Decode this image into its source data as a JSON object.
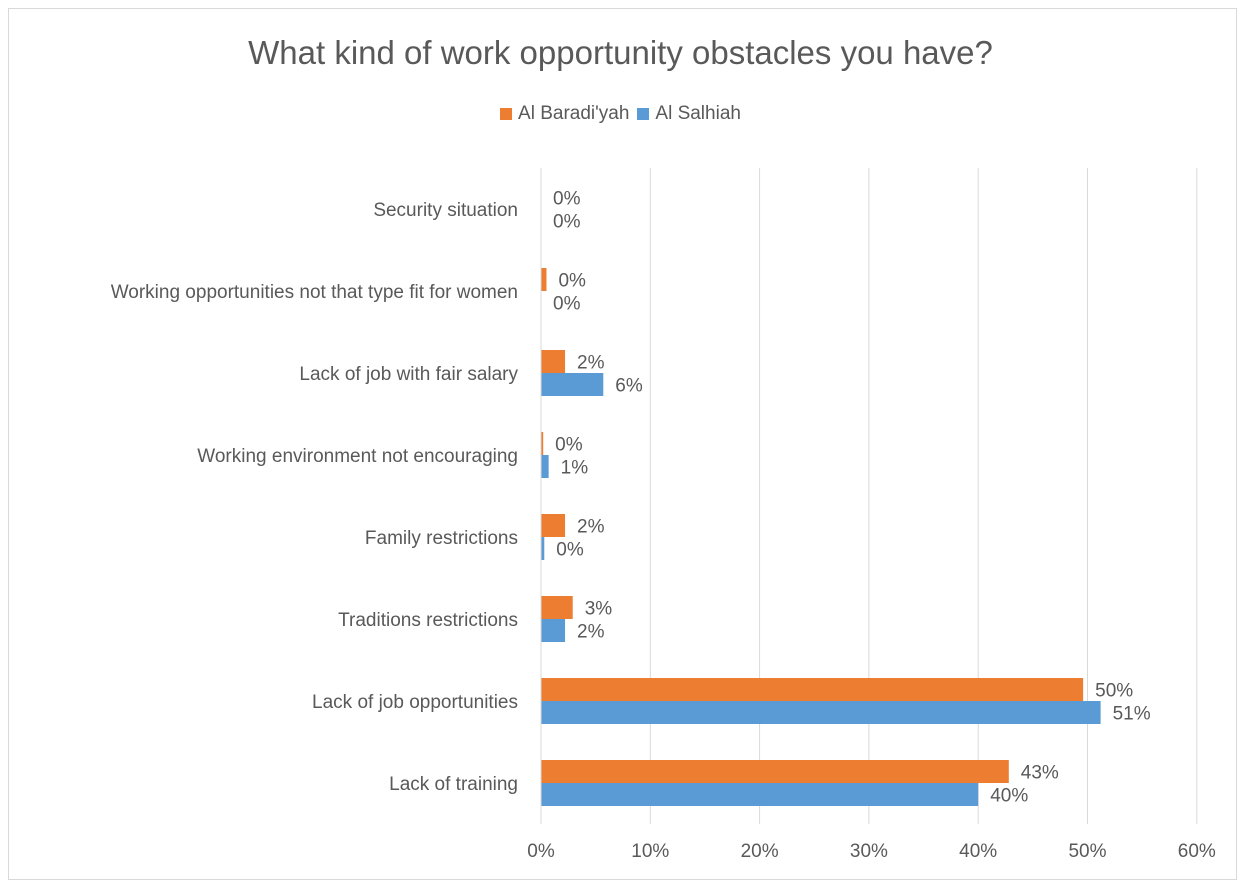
{
  "chart_data": {
    "type": "bar",
    "orientation": "horizontal",
    "title": "What kind of work opportunity obstacles you have?",
    "categories": [
      "Security situation",
      "Working opportunities not that type fit for women",
      "Lack of job with fair salary",
      "Working environment not encouraging",
      "Family restrictions",
      "Traditions restrictions",
      "Lack of job opportunities",
      "Lack of training"
    ],
    "series": [
      {
        "name": "Al Baradi'yah",
        "color": "#ED7D31",
        "values": [
          0,
          0.5,
          2.2,
          0.2,
          2.2,
          2.9,
          49.6,
          42.8
        ],
        "labels": [
          "0%",
          "0%",
          "2%",
          "0%",
          "2%",
          "3%",
          "50%",
          "43%"
        ]
      },
      {
        "name": "Al Salhiah",
        "color": "#5B9BD5",
        "values": [
          0,
          0,
          5.7,
          0.7,
          0.3,
          2.2,
          51.2,
          40.0
        ],
        "labels": [
          "0%",
          "0%",
          "6%",
          "1%",
          "0%",
          "2%",
          "51%",
          "40%"
        ]
      }
    ],
    "xlim": [
      0,
      60
    ],
    "xticks": [
      "0%",
      "10%",
      "20%",
      "30%",
      "40%",
      "50%",
      "60%"
    ],
    "grid": true,
    "legend_position": "top"
  }
}
